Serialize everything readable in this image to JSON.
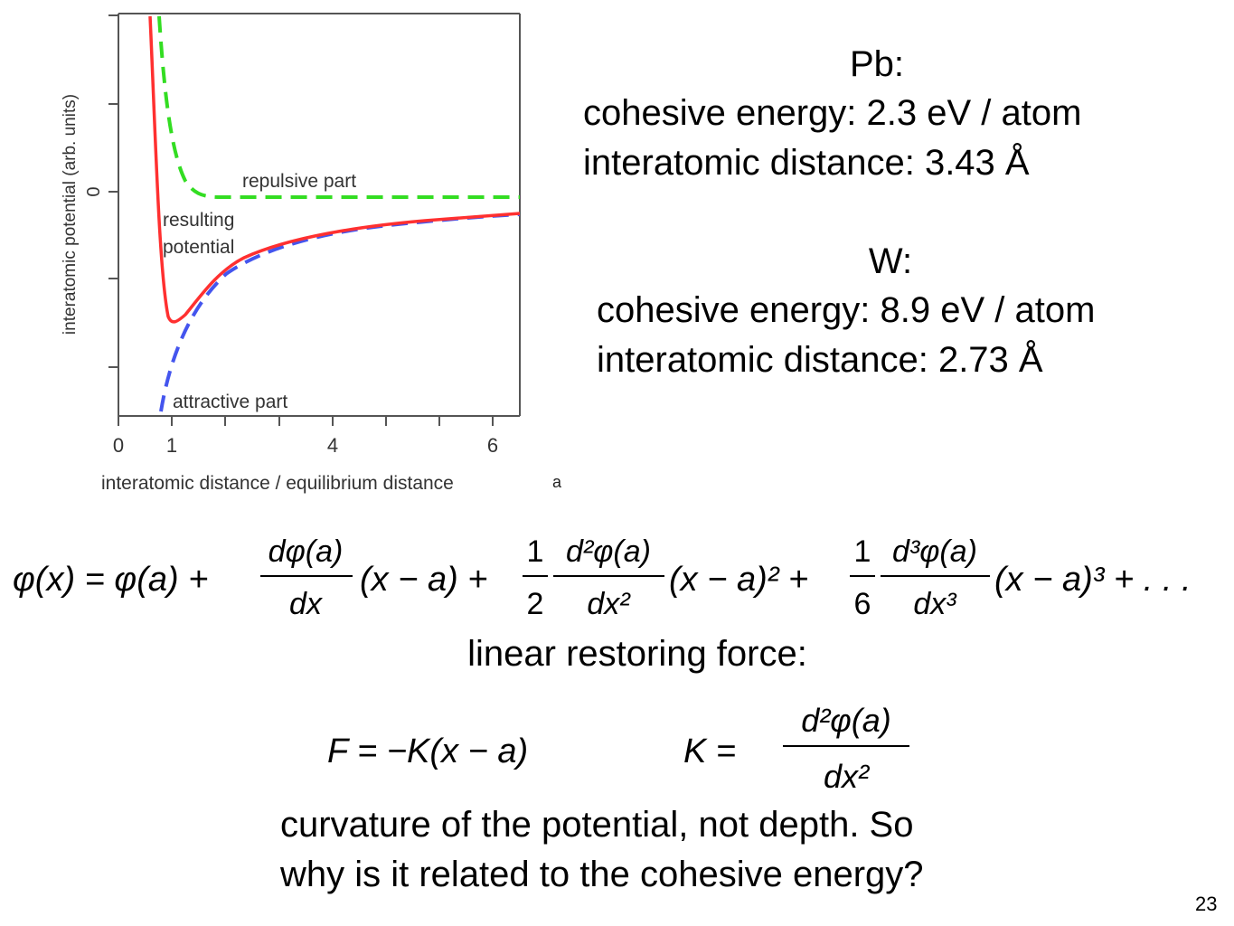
{
  "plot": {
    "y_axis_label": "interatomic potential (arb. units)",
    "x_axis_label": "interatomic distance / equilibrium distance",
    "y_tick_zero": "0",
    "x_ticks": [
      "0",
      "1",
      "4",
      "6"
    ],
    "label_repulsive": "repulsive part",
    "label_resulting_1": "resulting",
    "label_resulting_2": "potential",
    "label_attractive": "attractive part",
    "annotation_a": "a",
    "colors": {
      "resulting": "#ff3030",
      "repulsive": "#33dd22",
      "attractive": "#4455ee"
    }
  },
  "pb": {
    "title": "Pb:",
    "cohesive": "cohesive energy: 2.3 eV / atom",
    "distance": "interatomic distance: 3.43 Å"
  },
  "w": {
    "title": "W:",
    "cohesive": "cohesive energy: 8.9 eV / atom",
    "distance": "interatomic distance: 2.73 Å"
  },
  "taylor": {
    "lhs": "φ(x) = φ(a) +",
    "t1_num": "dφ(a)",
    "t1_den": "dx",
    "t1_tail": "(x − a) +",
    "half_num": "1",
    "half_den": "2",
    "t2_num": "d²φ(a)",
    "t2_den": "dx²",
    "t2_tail": "(x − a)² +",
    "sixth_num": "1",
    "sixth_den": "6",
    "t3_num": "d³φ(a)",
    "t3_den": "dx³",
    "t3_tail": "(x − a)³ + . . ."
  },
  "restoring_label": "linear restoring force:",
  "force": {
    "eq": "F = −K(x − a)",
    "k_lhs": "K =",
    "k_num": "d²φ(a)",
    "k_den": "dx²"
  },
  "question": {
    "line1": "curvature of the potential, not depth. So",
    "line2": "why is it related to the cohesive energy?"
  },
  "page_number": "23"
}
